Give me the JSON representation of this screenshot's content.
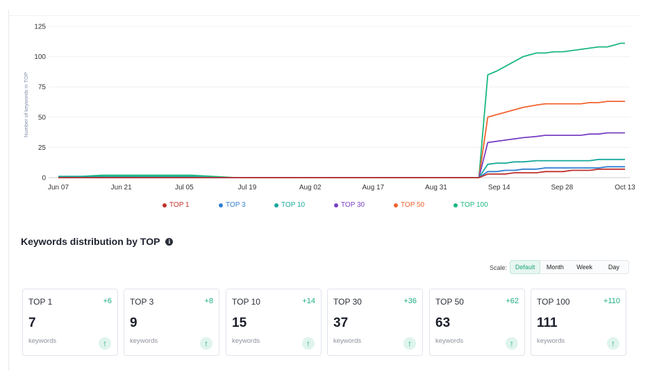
{
  "chart_data": {
    "type": "line",
    "ylabel": "Number of keywords in TOP",
    "xlabel": "",
    "ylim": [
      0,
      125
    ],
    "yticks": [
      "0",
      "25",
      "50",
      "75",
      "100",
      "125"
    ],
    "x_tick_labels": [
      "Jun 07",
      "Jun 21",
      "Jul 05",
      "Jul 19",
      "Aug 02",
      "Aug 17",
      "Aug 31",
      "Sep 14",
      "Sep 28",
      "Oct 13"
    ],
    "x": [
      0,
      5,
      10,
      15,
      20,
      25,
      30,
      35,
      40,
      45,
      50,
      55,
      60,
      65,
      70,
      75,
      80,
      85,
      90,
      95,
      97,
      99,
      101,
      103,
      105,
      108,
      110,
      112,
      114,
      116,
      118,
      120,
      122,
      124,
      126,
      127,
      128
    ],
    "x_note_removed": true,
    "series": [
      {
        "name": "TOP 1",
        "color": "#c0312b",
        "values": [
          0,
          0,
          0,
          0,
          0,
          0,
          0,
          0,
          0,
          0,
          0,
          0,
          0,
          0,
          0,
          0,
          0,
          0,
          0,
          0,
          3,
          3,
          3,
          4,
          4,
          4,
          5,
          5,
          5,
          6,
          6,
          6,
          7,
          7,
          7,
          7,
          7
        ]
      },
      {
        "name": "TOP 3",
        "color": "#2f7fd1",
        "values": [
          0,
          0,
          0,
          0,
          0,
          0,
          0,
          0,
          0,
          0,
          0,
          0,
          0,
          0,
          0,
          0,
          0,
          0,
          0,
          0,
          5,
          5,
          6,
          6,
          7,
          7,
          8,
          8,
          8,
          8,
          8,
          8,
          8,
          9,
          9,
          9,
          9
        ]
      },
      {
        "name": "TOP 10",
        "color": "#17a89a",
        "values": [
          1,
          1,
          1,
          1,
          1,
          1,
          1,
          0,
          0,
          0,
          0,
          0,
          0,
          0,
          0,
          0,
          0,
          0,
          0,
          0,
          11,
          12,
          12,
          13,
          13,
          14,
          14,
          14,
          14,
          14,
          14,
          14,
          15,
          15,
          15,
          15,
          15
        ]
      },
      {
        "name": "TOP 30",
        "color": "#7a3fc4",
        "values": [
          0,
          0,
          0,
          0,
          0,
          0,
          0,
          0,
          0,
          0,
          0,
          0,
          0,
          0,
          0,
          0,
          0,
          0,
          0,
          0,
          29,
          30,
          31,
          32,
          33,
          34,
          35,
          35,
          35,
          35,
          35,
          36,
          36,
          37,
          37,
          37,
          37
        ]
      },
      {
        "name": "TOP 50",
        "color": "#f2622e",
        "values": [
          0,
          0,
          0,
          0,
          0,
          0,
          0,
          0,
          0,
          0,
          0,
          0,
          0,
          0,
          0,
          0,
          0,
          0,
          0,
          0,
          50,
          52,
          54,
          56,
          58,
          60,
          61,
          61,
          61,
          61,
          61,
          62,
          62,
          63,
          63,
          63,
          63
        ]
      },
      {
        "name": "TOP 100",
        "color": "#1bb77e",
        "values": [
          1,
          1,
          2,
          2,
          2,
          2,
          2,
          1,
          0,
          0,
          0,
          0,
          0,
          0,
          0,
          0,
          0,
          0,
          0,
          0,
          85,
          88,
          92,
          96,
          100,
          103,
          103,
          104,
          104,
          105,
          106,
          107,
          108,
          108,
          110,
          111,
          111
        ]
      }
    ]
  },
  "distribution": {
    "title": "Keywords distribution by TOP",
    "info_icon": "info-icon",
    "scale_label": "Scale:",
    "scale_options": [
      "Default",
      "Month",
      "Week",
      "Day"
    ],
    "scale_selected": "Default",
    "cards": [
      {
        "name": "TOP 1",
        "delta": "+6",
        "value": "7",
        "unit": "keywords"
      },
      {
        "name": "TOP 3",
        "delta": "+8",
        "value": "9",
        "unit": "keywords"
      },
      {
        "name": "TOP 10",
        "delta": "+14",
        "value": "15",
        "unit": "keywords"
      },
      {
        "name": "TOP 30",
        "delta": "+36",
        "value": "37",
        "unit": "keywords"
      },
      {
        "name": "TOP 50",
        "delta": "+62",
        "value": "63",
        "unit": "keywords"
      },
      {
        "name": "TOP 100",
        "delta": "+110",
        "value": "111",
        "unit": "keywords"
      }
    ],
    "arrow_glyph": "↑",
    "accent": "#1ba57e"
  }
}
